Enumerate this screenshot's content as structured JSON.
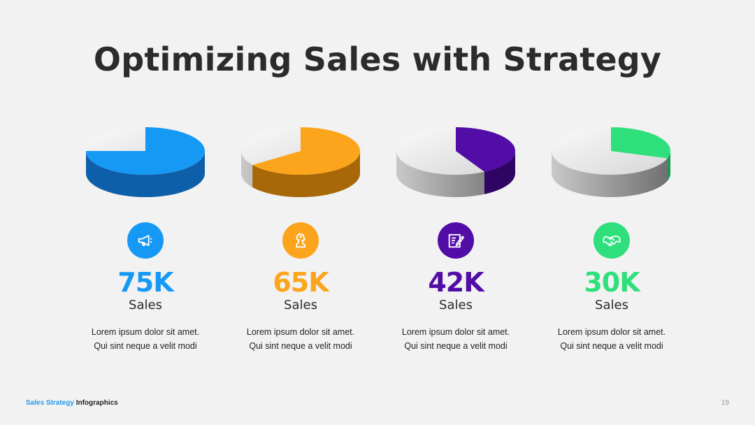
{
  "title": "Optimizing Sales with Strategy",
  "chart_data": {
    "type": "pie",
    "charts": [
      {
        "value_label": "75K",
        "label": "Sales",
        "share": 0.75,
        "color": "#1599f5",
        "dark": "#0c5fa8"
      },
      {
        "value_label": "65K",
        "label": "Sales",
        "share": 0.65,
        "color": "#fca51c",
        "dark": "#a86808"
      },
      {
        "value_label": "42K",
        "label": "Sales",
        "share": 0.42,
        "color": "#520da6",
        "dark": "#2e0563"
      },
      {
        "value_label": "30K",
        "label": "Sales",
        "share": 0.3,
        "color": "#2edf7c",
        "dark": "#1b9a52"
      }
    ]
  },
  "cards": [
    {
      "icon": "megaphone-icon",
      "value": "75K",
      "label": "Sales",
      "line1": "Lorem ipsum dolor sit amet.",
      "line2": "Qui sint neque a velit modi",
      "color": "#1599f5"
    },
    {
      "icon": "chess-knight-icon",
      "value": "65K",
      "label": "Sales",
      "line1": "Lorem ipsum dolor sit amet.",
      "line2": "Qui sint neque a velit modi",
      "color": "#fca51c"
    },
    {
      "icon": "edit-document-icon",
      "value": "42K",
      "label": "Sales",
      "line1": "Lorem ipsum dolor sit amet.",
      "line2": "Qui sint neque a velit modi",
      "color": "#520da6"
    },
    {
      "icon": "handshake-icon",
      "value": "30K",
      "label": "Sales",
      "line1": "Lorem ipsum dolor sit amet.",
      "line2": "Qui sint neque a velit modi",
      "color": "#2edf7c"
    }
  ],
  "footer": {
    "accent": "Sales Strategy",
    "rest": "Infographics",
    "page": "19"
  }
}
